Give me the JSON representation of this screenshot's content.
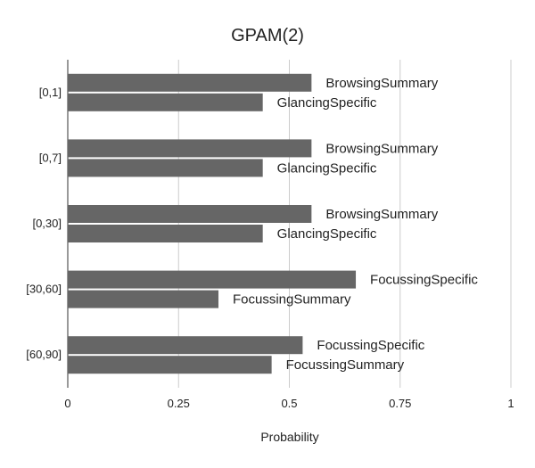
{
  "chart_data": {
    "type": "bar",
    "orientation": "horizontal",
    "title": "GPAM(2)",
    "xlabel": "Probability",
    "ylabel": "",
    "xlim": [
      0,
      1
    ],
    "xticks": [
      "0",
      "0.25",
      "0.5",
      "0.75",
      "1"
    ],
    "grid": true,
    "bar_color": "#666666",
    "categories": [
      {
        "label": "[0,1]",
        "bars": [
          {
            "name": "BrowsingSummary",
            "value": 0.55
          },
          {
            "name": "GlancingSpecific",
            "value": 0.44
          }
        ]
      },
      {
        "label": "[0,7]",
        "bars": [
          {
            "name": "BrowsingSummary",
            "value": 0.55
          },
          {
            "name": "GlancingSpecific",
            "value": 0.44
          }
        ]
      },
      {
        "label": "[0,30]",
        "bars": [
          {
            "name": "BrowsingSummary",
            "value": 0.55
          },
          {
            "name": "GlancingSpecific",
            "value": 0.44
          }
        ]
      },
      {
        "label": "[30,60]",
        "bars": [
          {
            "name": "FocussingSpecific",
            "value": 0.65
          },
          {
            "name": "FocussingSummary",
            "value": 0.34
          }
        ]
      },
      {
        "label": "[60,90]",
        "bars": [
          {
            "name": "FocussingSpecific",
            "value": 0.53
          },
          {
            "name": "FocussingSummary",
            "value": 0.46
          }
        ]
      }
    ]
  }
}
